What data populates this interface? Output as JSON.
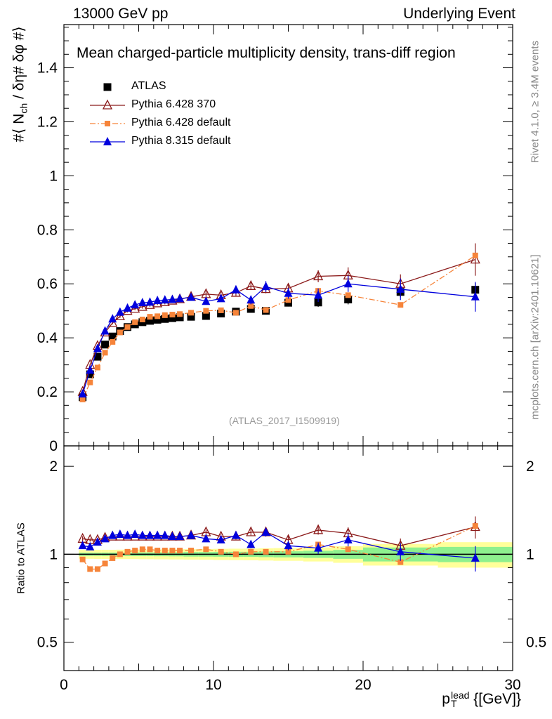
{
  "header": {
    "left": "13000 GeV pp",
    "right": "Underlying Event"
  },
  "side_labels": {
    "rivet": "Rivet 4.1.0, ≥ 3.4M events",
    "mcplots": "mcplots.cern.ch [arXiv:2401.10621]"
  },
  "watermark": "(ATLAS_2017_I1509919)",
  "chart_data": {
    "type": "scatter",
    "title": "Mean charged-particle multiplicity density, trans-diff region",
    "ylabel": "#⟨ N_ch / δη# δφ #⟩",
    "ylabel_parts": {
      "pre": "#⟨ N",
      "sub": "ch",
      "post": " / δη# δφ #⟩"
    },
    "ratio_ylabel": "Ratio to ATLAS",
    "xlabel_parts": {
      "p": "p",
      "sub": "T",
      "sup": "lead",
      "unit": " {[GeV]}"
    },
    "xlim": [
      0,
      30
    ],
    "ylim": [
      0,
      1.56
    ],
    "ratio_ylim": [
      0.4,
      2.35
    ],
    "x_ticks": [
      "0",
      "10",
      "20",
      "30"
    ],
    "y_ticks": [
      "0",
      "0.2",
      "0.4",
      "0.6",
      "0.8",
      "1",
      "1.2",
      "1.4"
    ],
    "ratio_ticks": [
      "0.5",
      "1",
      "2"
    ],
    "series": [
      {
        "name": "ATLAS",
        "color": "#000000",
        "marker": "square",
        "x": [
          1.25,
          1.75,
          2.25,
          2.75,
          3.25,
          3.75,
          4.25,
          4.75,
          5.25,
          5.75,
          6.25,
          6.75,
          7.25,
          7.75,
          8.5,
          9.5,
          10.5,
          11.5,
          12.5,
          13.5,
          15,
          17,
          19,
          22.5,
          27.5
        ],
        "y": [
          0.18,
          0.265,
          0.33,
          0.375,
          0.405,
          0.425,
          0.44,
          0.45,
          0.458,
          0.463,
          0.467,
          0.47,
          0.473,
          0.476,
          0.478,
          0.481,
          0.49,
          0.497,
          0.507,
          0.5,
          0.53,
          0.531,
          0.542,
          0.57,
          0.578
        ],
        "err": [
          0.005,
          0.005,
          0.005,
          0.006,
          0.006,
          0.006,
          0.006,
          0.006,
          0.006,
          0.006,
          0.006,
          0.006,
          0.007,
          0.007,
          0.008,
          0.008,
          0.009,
          0.01,
          0.011,
          0.012,
          0.014,
          0.016,
          0.018,
          0.02,
          0.025
        ]
      },
      {
        "name": "Pythia 6.428 370",
        "color": "#8b1a1a",
        "marker": "triangle-open",
        "linestyle": "solid",
        "x": [
          1.25,
          1.75,
          2.25,
          2.75,
          3.25,
          3.75,
          4.25,
          4.75,
          5.25,
          5.75,
          6.25,
          6.75,
          7.25,
          7.75,
          8.5,
          9.5,
          10.5,
          11.5,
          12.5,
          13.5,
          15,
          17,
          19,
          22.5,
          27.5
        ],
        "y": [
          0.2,
          0.3,
          0.37,
          0.42,
          0.455,
          0.48,
          0.5,
          0.508,
          0.515,
          0.522,
          0.528,
          0.532,
          0.538,
          0.543,
          0.552,
          0.562,
          0.558,
          0.567,
          0.592,
          0.581,
          0.583,
          0.628,
          0.631,
          0.6,
          0.69
        ],
        "err": [
          0.004,
          0.004,
          0.005,
          0.005,
          0.005,
          0.006,
          0.006,
          0.006,
          0.007,
          0.007,
          0.007,
          0.008,
          0.008,
          0.008,
          0.01,
          0.011,
          0.012,
          0.013,
          0.014,
          0.016,
          0.018,
          0.022,
          0.03,
          0.035,
          0.06
        ]
      },
      {
        "name": "Pythia 6.428 default",
        "color": "#f6843a",
        "marker": "square",
        "linestyle": "dashdot",
        "x": [
          1.25,
          1.75,
          2.25,
          2.75,
          3.25,
          3.75,
          4.25,
          4.75,
          5.25,
          5.75,
          6.25,
          6.75,
          7.25,
          7.75,
          8.5,
          9.5,
          10.5,
          11.5,
          12.5,
          13.5,
          15,
          17,
          19,
          22.5,
          27.5
        ],
        "y": [
          0.172,
          0.235,
          0.29,
          0.345,
          0.385,
          0.42,
          0.44,
          0.458,
          0.468,
          0.478,
          0.48,
          0.484,
          0.486,
          0.488,
          0.493,
          0.5,
          0.502,
          0.493,
          0.518,
          0.503,
          0.54,
          0.574,
          0.558,
          0.522,
          0.705
        ]
      },
      {
        "name": "Pythia 8.315 default",
        "color": "#0000dd",
        "marker": "triangle",
        "linestyle": "solid",
        "x": [
          1.25,
          1.75,
          2.25,
          2.75,
          3.25,
          3.75,
          4.25,
          4.75,
          5.25,
          5.75,
          6.25,
          6.75,
          7.25,
          7.75,
          8.5,
          9.5,
          10.5,
          11.5,
          12.5,
          13.5,
          15,
          17,
          19,
          22.5,
          27.5
        ],
        "y": [
          0.192,
          0.28,
          0.36,
          0.425,
          0.47,
          0.495,
          0.51,
          0.522,
          0.53,
          0.532,
          0.538,
          0.54,
          0.542,
          0.545,
          0.55,
          0.535,
          0.545,
          0.578,
          0.54,
          0.59,
          0.565,
          0.558,
          0.6,
          0.58,
          0.552
        ],
        "err": [
          0.004,
          0.004,
          0.005,
          0.005,
          0.005,
          0.006,
          0.006,
          0.006,
          0.007,
          0.007,
          0.007,
          0.008,
          0.008,
          0.008,
          0.01,
          0.011,
          0.012,
          0.015,
          0.016,
          0.02,
          0.02,
          0.025,
          0.03,
          0.04,
          0.055
        ]
      }
    ],
    "ratio_series": [
      {
        "name": "Pythia 6.428 370",
        "y": [
          1.13,
          1.12,
          1.12,
          1.14,
          1.15,
          1.15,
          1.15,
          1.15,
          1.15,
          1.15,
          1.15,
          1.15,
          1.15,
          1.15,
          1.16,
          1.19,
          1.15,
          1.15,
          1.19,
          1.19,
          1.12,
          1.21,
          1.18,
          1.07,
          1.24
        ]
      },
      {
        "name": "Pythia 6.428 default",
        "y": [
          0.96,
          0.89,
          0.89,
          0.93,
          0.97,
          1.0,
          1.02,
          1.03,
          1.04,
          1.04,
          1.03,
          1.03,
          1.03,
          1.03,
          1.03,
          1.04,
          1.02,
          1.0,
          1.02,
          1.02,
          1.02,
          1.08,
          1.04,
          0.94,
          1.25
        ]
      },
      {
        "name": "Pythia 8.315 default",
        "y": [
          1.07,
          1.06,
          1.1,
          1.13,
          1.16,
          1.17,
          1.16,
          1.17,
          1.16,
          1.16,
          1.16,
          1.16,
          1.15,
          1.15,
          1.16,
          1.13,
          1.12,
          1.16,
          1.08,
          1.19,
          1.07,
          1.05,
          1.12,
          1.02,
          0.97
        ]
      }
    ],
    "bands": {
      "edges": [
        1,
        1.5,
        2,
        2.5,
        3,
        3.5,
        4,
        4.5,
        5,
        5.5,
        6,
        6.5,
        7,
        7.5,
        8,
        9,
        10,
        11,
        12,
        13,
        14,
        16,
        18,
        20,
        25,
        30
      ],
      "stat": [
        0.012,
        0.012,
        0.012,
        0.013,
        0.013,
        0.013,
        0.013,
        0.014,
        0.014,
        0.014,
        0.015,
        0.015,
        0.016,
        0.016,
        0.018,
        0.018,
        0.019,
        0.02,
        0.02,
        0.022,
        0.024,
        0.028,
        0.035,
        0.055,
        0.06
      ],
      "syst": [
        0.035,
        0.035,
        0.036,
        0.036,
        0.036,
        0.037,
        0.037,
        0.037,
        0.038,
        0.038,
        0.039,
        0.039,
        0.04,
        0.04,
        0.041,
        0.042,
        0.044,
        0.045,
        0.046,
        0.048,
        0.05,
        0.055,
        0.065,
        0.085,
        0.1
      ],
      "colors": {
        "inner": "#8ef08e",
        "outer": "#ffff9a"
      }
    }
  }
}
